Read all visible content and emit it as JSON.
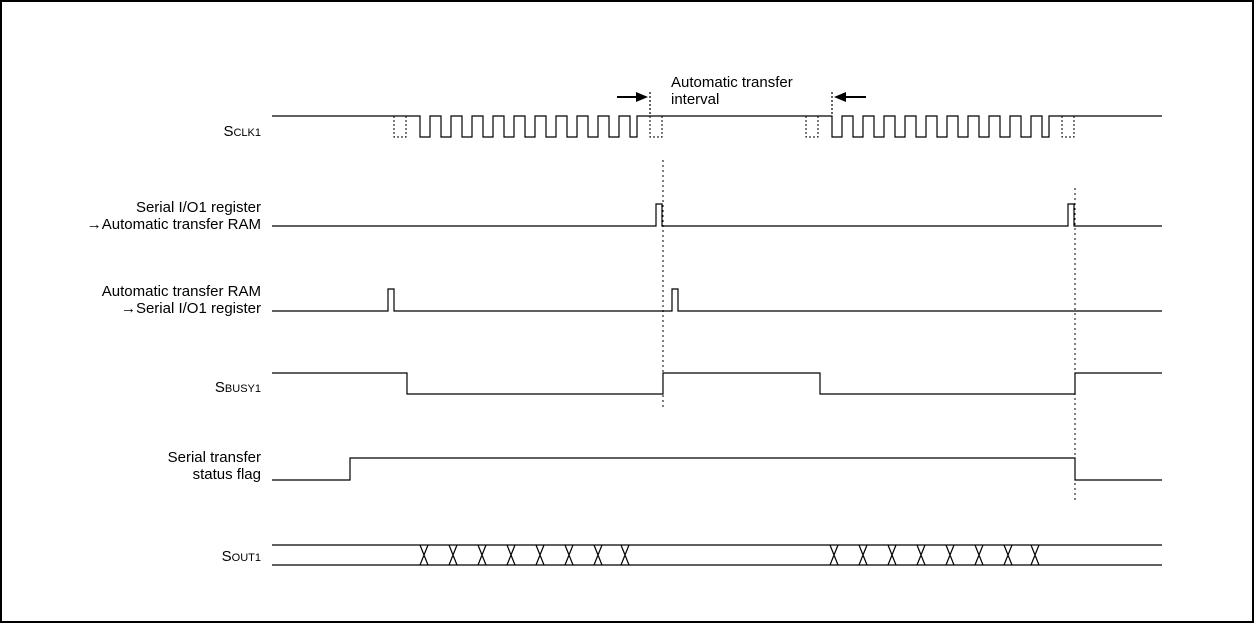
{
  "annotation": {
    "line1": "Automatic transfer",
    "line2": "interval"
  },
  "signals": {
    "sclk": {
      "prefix": "S",
      "subscript": "CLK1"
    },
    "reg_to_ram": {
      "line1": "Serial I/O1 register",
      "line2": "→Automatic transfer RAM"
    },
    "ram_to_reg": {
      "line1": "Automatic transfer RAM",
      "line2": "→Serial I/O1 register"
    },
    "sbusy": {
      "prefix": "S",
      "subscript": "BUSY1"
    },
    "status_flag": {
      "line1": "Serial transfer",
      "line2": "status flag"
    },
    "sout": {
      "prefix": "S",
      "subscript": "OUT1"
    }
  }
}
